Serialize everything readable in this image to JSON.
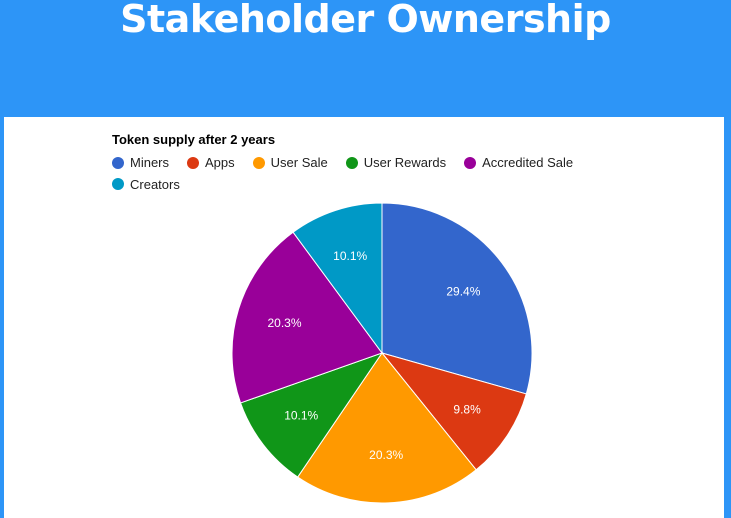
{
  "header": {
    "title": "Stakeholder Ownership"
  },
  "colors": {
    "banner": "#2d95f7",
    "panel": "#ffffff"
  },
  "chart_data": {
    "type": "pie",
    "title": "Token supply after 2 years",
    "legend_position": "top-left",
    "slices": [
      {
        "name": "Miners",
        "value": 29.4,
        "label": "29.4%",
        "color": "#3366cc"
      },
      {
        "name": "Apps",
        "value": 9.8,
        "label": "9.8%",
        "color": "#dc3912"
      },
      {
        "name": "User Sale",
        "value": 20.3,
        "label": "20.3%",
        "color": "#ff9900"
      },
      {
        "name": "User Rewards",
        "value": 10.1,
        "label": "10.1%",
        "color": "#109618"
      },
      {
        "name": "Accredited Sale",
        "value": 20.3,
        "label": "20.3%",
        "color": "#990099"
      },
      {
        "name": "Creators",
        "value": 10.1,
        "label": "10.1%",
        "color": "#0099c6"
      }
    ]
  }
}
